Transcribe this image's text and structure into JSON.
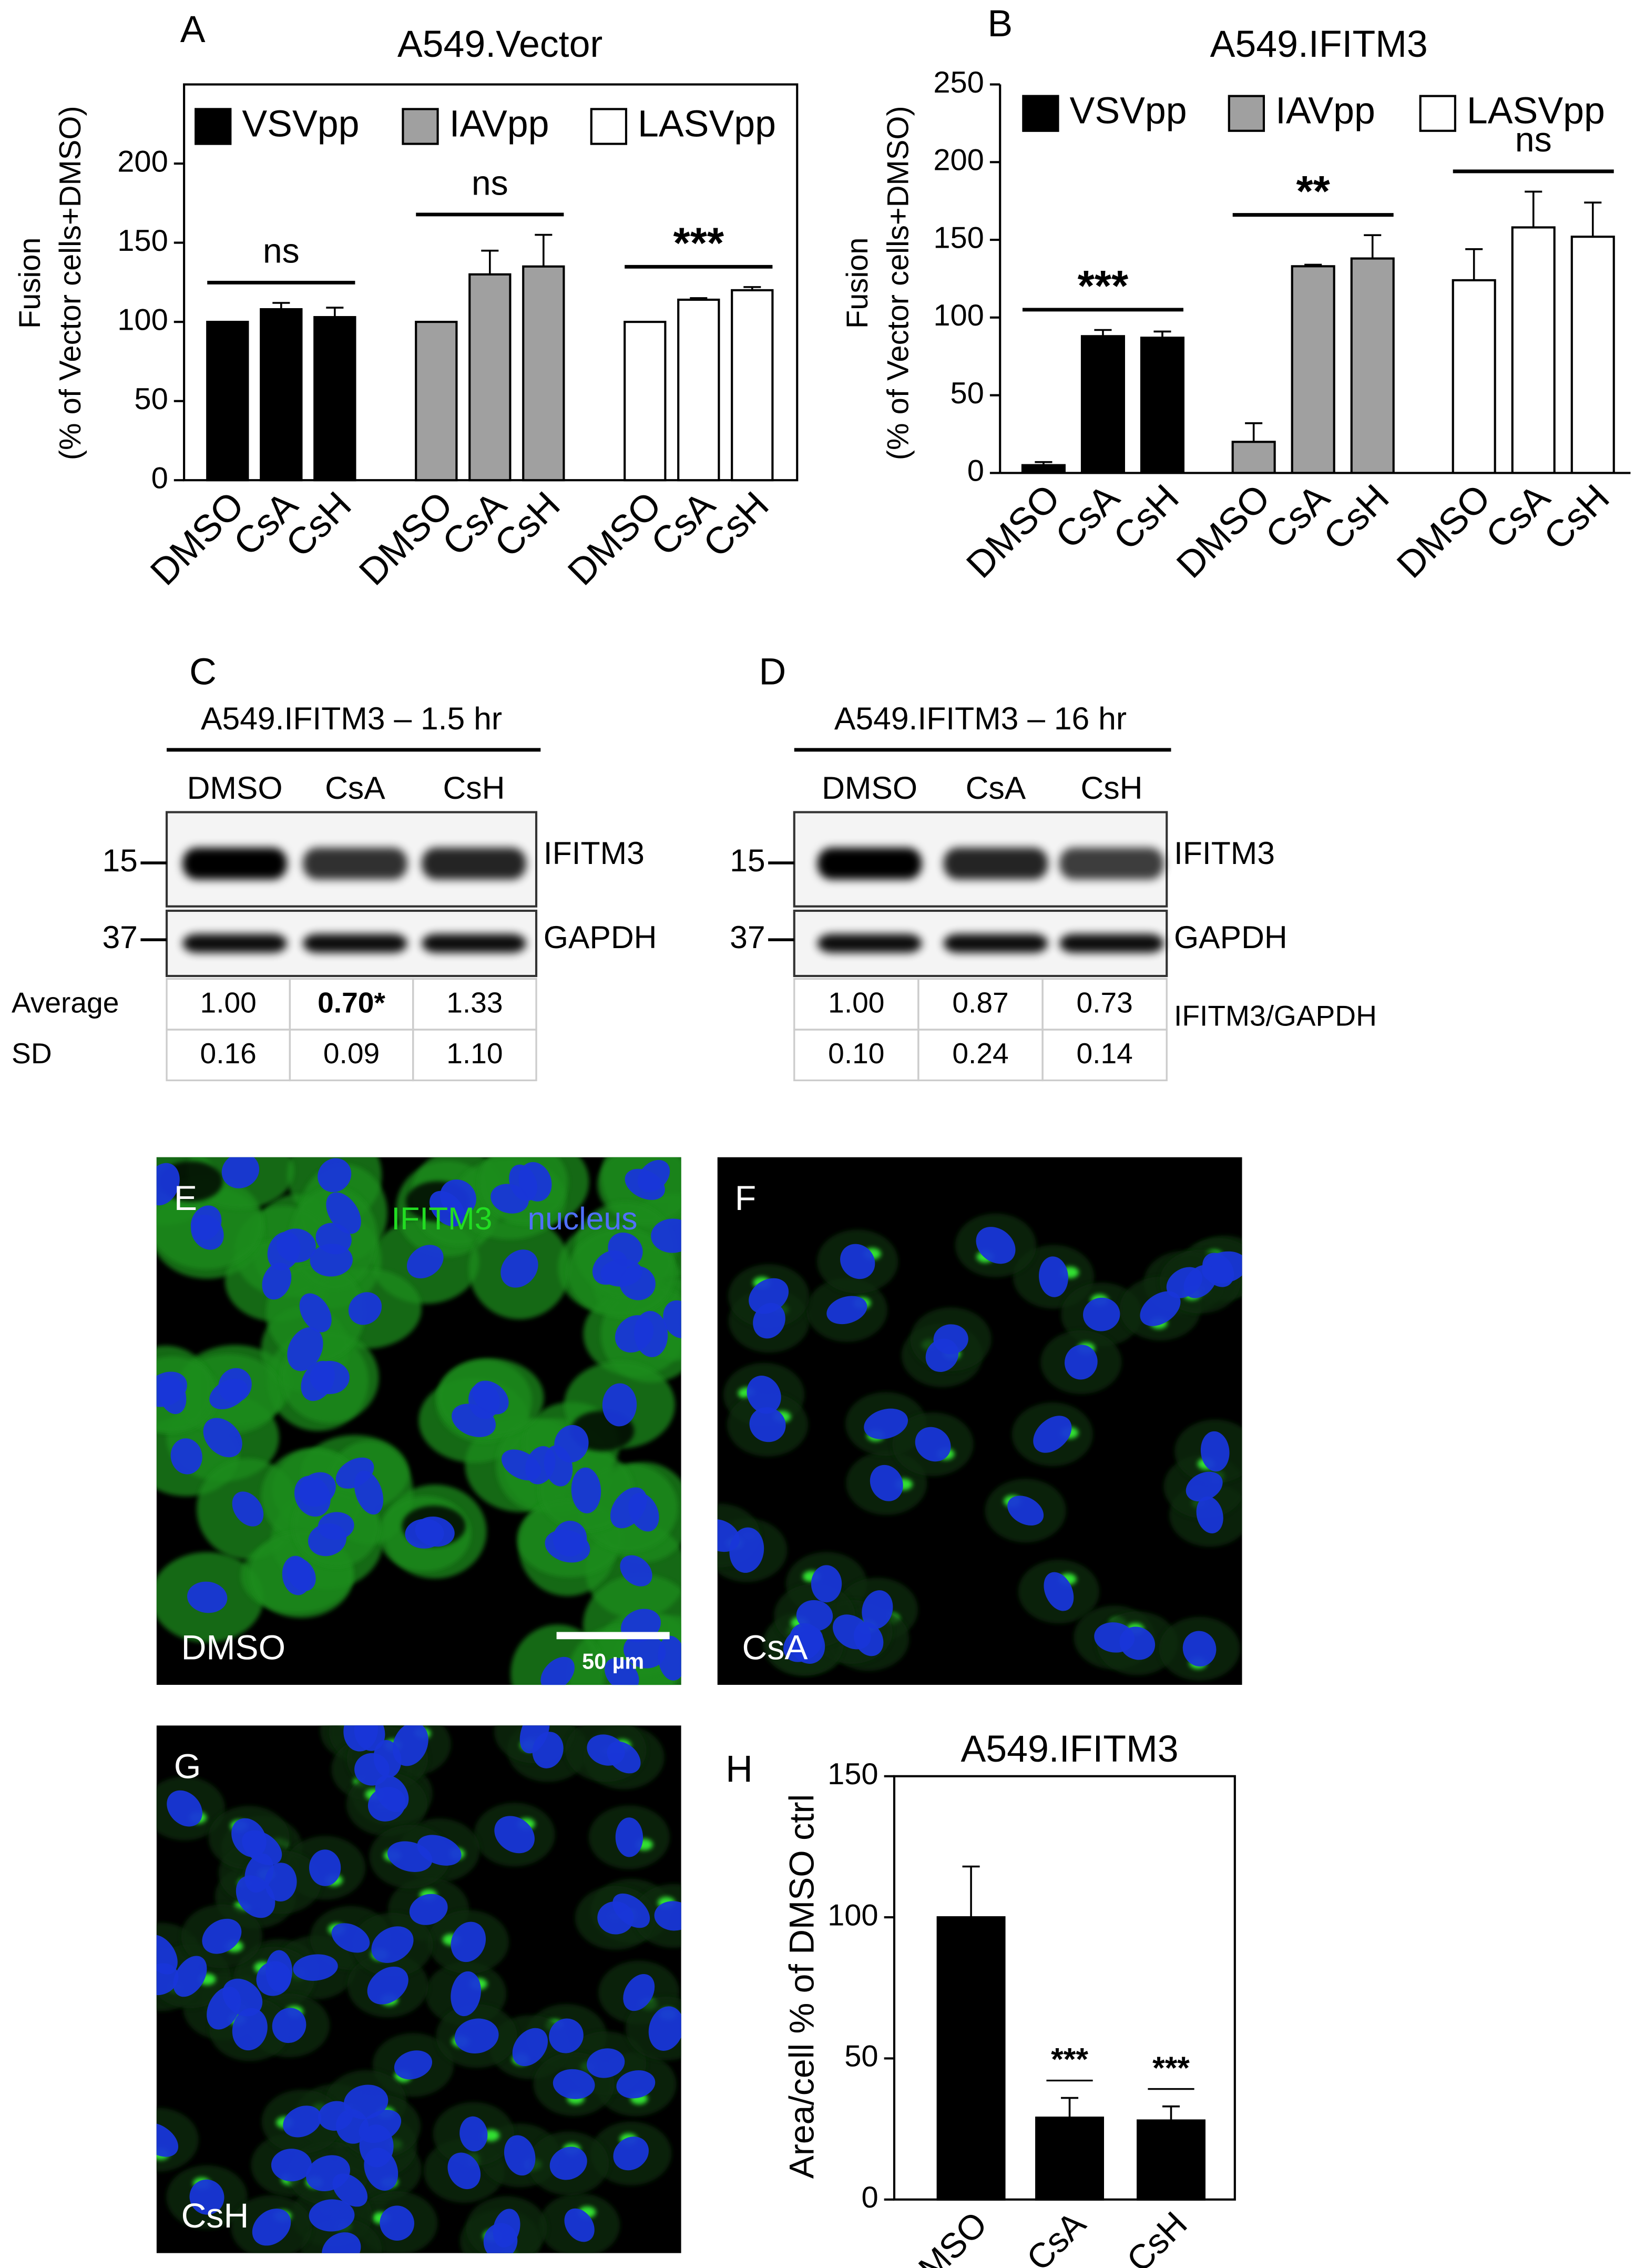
{
  "chart_data": [
    {
      "type": "bar",
      "panel": "A",
      "title": "A549.Vector",
      "ylabel": [
        "Fusion",
        "(% of Vector cells+DMSO)"
      ],
      "categories": [
        "DMSO",
        "CsA",
        "CsH"
      ],
      "series": [
        {
          "name": "VSVpp",
          "color": "#000000",
          "values": [
            100,
            108,
            103
          ],
          "errors": [
            0,
            4,
            6
          ],
          "annotation": "ns"
        },
        {
          "name": "IAVpp",
          "color": "#a0a0a0",
          "values": [
            100,
            130,
            135
          ],
          "errors": [
            0,
            15,
            20
          ],
          "annotation": "ns"
        },
        {
          "name": "LASVpp",
          "color": "#ffffff",
          "values": [
            100,
            114,
            120
          ],
          "errors": [
            0,
            1,
            2
          ],
          "annotation": "***"
        }
      ],
      "ylim": [
        0,
        250
      ],
      "yticks": [
        0,
        50,
        100,
        150,
        200
      ],
      "box": true,
      "legend": "top"
    },
    {
      "type": "bar",
      "panel": "B",
      "title": "A549.IFITM3",
      "ylabel": [
        "Fusion",
        "(% of Vector cells+DMSO)"
      ],
      "categories": [
        "DMSO",
        "CsA",
        "CsH"
      ],
      "series": [
        {
          "name": "VSVpp",
          "color": "#000000",
          "values": [
            5,
            88,
            87
          ],
          "errors": [
            2,
            4,
            4
          ],
          "annotation": "***"
        },
        {
          "name": "IAVpp",
          "color": "#a0a0a0",
          "values": [
            20,
            133,
            138
          ],
          "errors": [
            12,
            1,
            15
          ],
          "annotation": "**"
        },
        {
          "name": "LASVpp",
          "color": "#ffffff",
          "values": [
            124,
            158,
            152
          ],
          "errors": [
            20,
            23,
            22
          ],
          "annotation": "ns"
        }
      ],
      "ylim": [
        0,
        250
      ],
      "yticks": [
        0,
        50,
        100,
        150,
        200,
        250
      ],
      "box": false,
      "legend": "top"
    },
    {
      "type": "bar",
      "panel": "H",
      "title": "A549.IFITM3",
      "ylabel": [
        "Area/cell % of DMSO ctrl"
      ],
      "categories": [
        "DMSO",
        "CsA",
        "CsH"
      ],
      "values": [
        100,
        29,
        28
      ],
      "errors": [
        18,
        7,
        5
      ],
      "annotations": [
        null,
        "***",
        "***"
      ],
      "color": "#000000",
      "ylim": [
        0,
        150
      ],
      "yticks": [
        0,
        50,
        100,
        150
      ],
      "box": true
    }
  ],
  "blots": [
    {
      "panel": "C",
      "title": "A549.IFITM3 – 1.5 hr",
      "lanes": [
        "DMSO",
        "CsA",
        "CsH"
      ],
      "markers": [
        "15",
        "37"
      ],
      "proteins": [
        "IFITM3",
        "GAPDH"
      ],
      "row_labels": [
        "Average",
        "SD"
      ],
      "rows": [
        [
          "1.00",
          "0.70*",
          "1.33"
        ],
        [
          "0.16",
          "0.09",
          "1.10"
        ]
      ]
    },
    {
      "panel": "D",
      "title": "A549.IFITM3 – 16 hr",
      "lanes": [
        "DMSO",
        "CsA",
        "CsH"
      ],
      "markers": [
        "15",
        "37"
      ],
      "proteins": [
        "IFITM3",
        "GAPDH"
      ],
      "ratio_label": "IFITM3/GAPDH",
      "rows": [
        [
          "1.00",
          "0.87",
          "0.73"
        ],
        [
          "0.10",
          "0.24",
          "0.14"
        ]
      ]
    }
  ],
  "micrographs": [
    {
      "panel": "E",
      "label": "DMSO",
      "stain": [
        "IFITM3",
        "nucleus"
      ],
      "scale_bar": "50 µm"
    },
    {
      "panel": "F",
      "label": "CsA"
    },
    {
      "panel": "G",
      "label": "CsH"
    }
  ]
}
